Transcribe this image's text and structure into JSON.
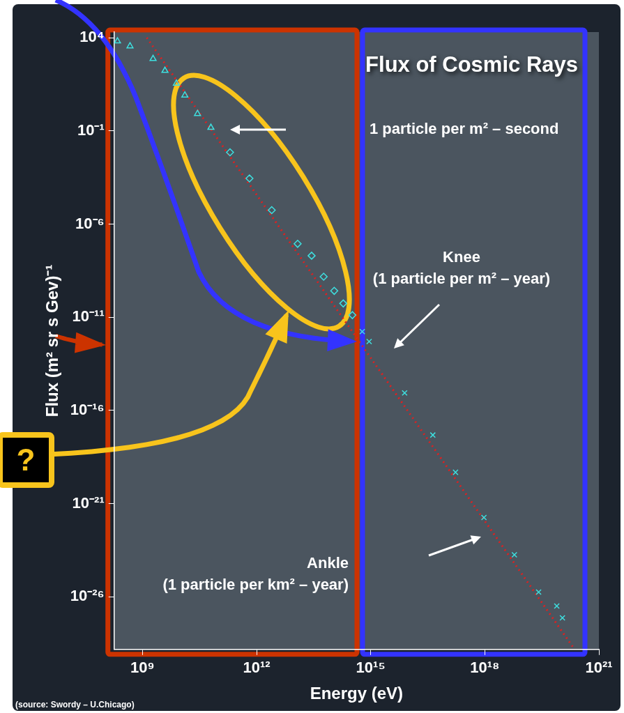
{
  "chart_data": {
    "type": "scatter",
    "title": "Flux of Cosmic Rays",
    "xlabel": "Energy (eV)",
    "ylabel": "Flux (m² sr s Gev)⁻¹",
    "log": "xy",
    "grid": false,
    "legend": false,
    "xlim": [
      180000000.0,
      1e+21
    ],
    "xticks": [
      {
        "value": 1000000000.0,
        "label": "10⁹"
      },
      {
        "value": 1000000000000.0,
        "label": "10¹²"
      },
      {
        "value": 1000000000000000.0,
        "label": "10¹⁵"
      },
      {
        "value": 1e+18,
        "label": "10¹⁸"
      },
      {
        "value": 1e+21,
        "label": "10²¹"
      }
    ],
    "ylim": [
      1.5e-29,
      20000.0
    ],
    "yticks": [
      {
        "value": 10000.0,
        "label": "10⁴"
      },
      {
        "value": 0.1,
        "label": "10⁻¹"
      },
      {
        "value": 1e-06,
        "label": "10⁻⁶"
      },
      {
        "value": 1e-11,
        "label": "10⁻¹¹"
      },
      {
        "value": 1e-16,
        "label": "10⁻¹⁶"
      },
      {
        "value": 1e-21,
        "label": "10⁻²¹"
      },
      {
        "value": 1e-26,
        "label": "10⁻²⁶"
      }
    ],
    "series": [
      {
        "type": "scatter",
        "marker": "triangle",
        "color": "#3ee0e0",
        "x": [
          220000000.0,
          470000000.0,
          1900000000.0,
          3900000000.0,
          7800000000.0,
          13000000000.0,
          28000000000.0,
          63000000000.0
        ],
        "values": [
          6500.0,
          3500.0,
          740,
          170,
          35,
          8.1,
          0.83,
          0.15
        ]
      },
      {
        "type": "scatter",
        "marker": "diamond",
        "color": "#3ee0e0",
        "x": [
          200000000000.0,
          650000000000.0,
          2500000000000.0,
          12000000000000.0,
          28000000000000.0,
          58000000000000.0,
          110000000000000.0,
          190000000000000.0,
          330000000000000.0
        ],
        "values": [
          0.0071,
          0.00028,
          5.6e-06,
          8.7e-08,
          2e-08,
          1.5e-09,
          2.6e-10,
          5.5e-11,
          1.3e-11
        ]
      },
      {
        "type": "scatter",
        "marker": "cross",
        "color": "#3ee0e0",
        "x": [
          600000000000000.0,
          910000000000000.0,
          7800000000000000.0,
          4.3e+16,
          1.7e+17,
          9.5e+17,
          6e+18,
          2.6e+19,
          7.8e+19,
          1.1e+20
        ],
        "values": [
          1.7e-12,
          5e-13,
          8.7e-16,
          4.8e-18,
          4.8e-20,
          1.8e-22,
          1.8e-24,
          1.8e-26,
          3.2e-27,
          7.4e-28
        ]
      },
      {
        "type": "line",
        "marker": "none",
        "line_style": "dotted",
        "color": "#e02020",
        "x": [
          1300000000.0,
          2.3e+20
        ],
        "values": [
          10000.0,
          1.5e-29
        ]
      }
    ],
    "annotations": [
      "1 particle per m² – second",
      "Knee\n(1 particle per m² – year)",
      "Ankle\n(1 particle per km² – year)",
      "?",
      "(source: Swordy – U.Chicago)"
    ]
  }
}
